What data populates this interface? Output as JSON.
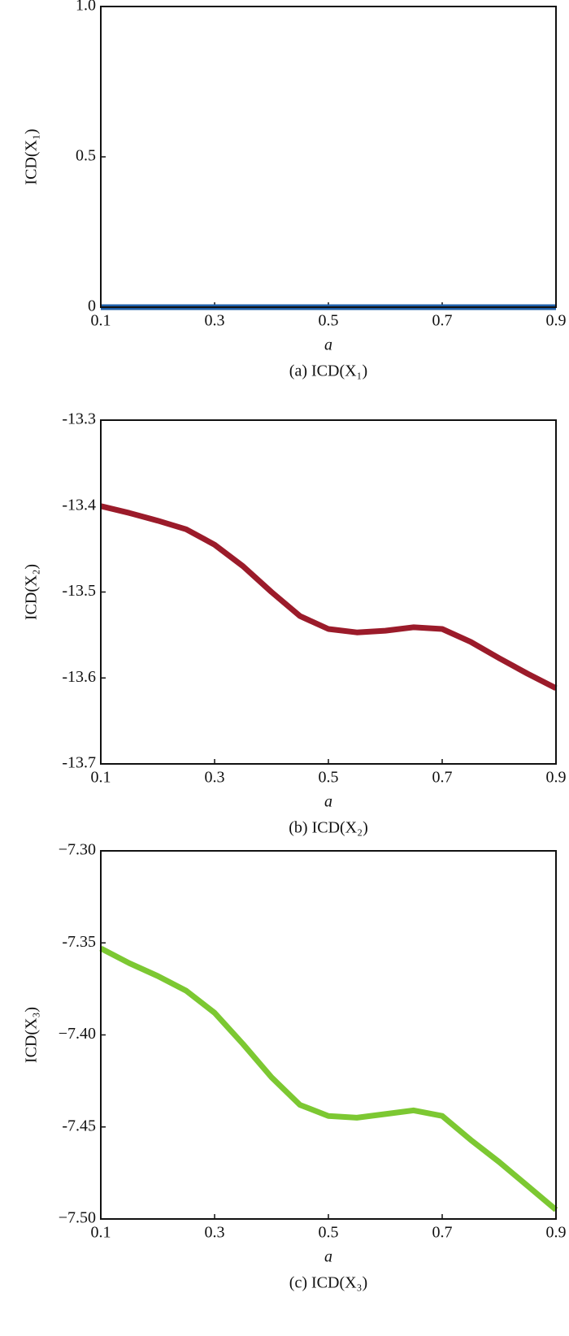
{
  "chart_data": [
    {
      "type": "line",
      "ylabel": "ICD(X₁)",
      "xlabel": "a",
      "caption": "(a) ICD(X₁)",
      "x": [
        0.1,
        0.15,
        0.2,
        0.25,
        0.3,
        0.35,
        0.4,
        0.45,
        0.5,
        0.55,
        0.6,
        0.65,
        0.7,
        0.75,
        0.8,
        0.85,
        0.9
      ],
      "series": [
        {
          "color": "#1f5fa8",
          "values": [
            0,
            0,
            0,
            0,
            0,
            0,
            0,
            0,
            0,
            0,
            0,
            0,
            0,
            0,
            0,
            0,
            0
          ]
        }
      ],
      "xlim": [
        0.1,
        0.9
      ],
      "xticks": [
        0.1,
        0.3,
        0.5,
        0.7,
        0.9
      ],
      "ylim": [
        0,
        1
      ],
      "yticks": [
        0,
        0.5,
        {
          "value": 1,
          "label": "1.0"
        }
      ]
    },
    {
      "type": "line",
      "ylabel": "ICD(X₂)",
      "xlabel": "a",
      "caption": "(b) ICD(X₂)",
      "x": [
        0.1,
        0.15,
        0.2,
        0.25,
        0.3,
        0.35,
        0.4,
        0.45,
        0.5,
        0.55,
        0.6,
        0.65,
        0.7,
        0.75,
        0.8,
        0.85,
        0.9
      ],
      "series": [
        {
          "color": "#9b1b2a",
          "values": [
            -13.4,
            -13.408,
            -13.417,
            -13.427,
            -13.445,
            -13.47,
            -13.5,
            -13.528,
            -13.543,
            -13.547,
            -13.545,
            -13.541,
            -13.543,
            -13.558,
            -13.577,
            -13.595,
            -13.612
          ]
        }
      ],
      "xlim": [
        0.1,
        0.9
      ],
      "xticks": [
        0.1,
        0.3,
        0.5,
        0.7,
        0.9
      ],
      "ylim": [
        -13.7,
        -13.3
      ],
      "yticks": [
        -13.7,
        -13.6,
        -13.5,
        -13.4,
        -13.3
      ]
    },
    {
      "type": "line",
      "ylabel": "ICD(X₃)",
      "xlabel": "a",
      "caption": "(c) ICD(X₃)",
      "x": [
        0.1,
        0.15,
        0.2,
        0.25,
        0.3,
        0.35,
        0.4,
        0.45,
        0.5,
        0.55,
        0.6,
        0.65,
        0.7,
        0.75,
        0.8,
        0.85,
        0.9
      ],
      "series": [
        {
          "color": "#7cc832",
          "values": [
            -7.353,
            -7.361,
            -7.368,
            -7.376,
            -7.388,
            -7.405,
            -7.423,
            -7.438,
            -7.444,
            -7.445,
            -7.443,
            -7.441,
            -7.444,
            -7.457,
            -7.469,
            -7.482,
            -7.495
          ]
        }
      ],
      "xlim": [
        0.1,
        0.9
      ],
      "xticks": [
        0.1,
        0.3,
        0.5,
        0.7,
        0.9
      ],
      "ylim": [
        -7.5,
        -7.3
      ],
      "yticks": [
        {
          "value": -7.5,
          "label": "−7.50"
        },
        -7.45,
        {
          "value": -7.4,
          "label": "−7.40"
        },
        -7.35,
        {
          "value": -7.3,
          "label": "−7.30"
        }
      ]
    }
  ]
}
